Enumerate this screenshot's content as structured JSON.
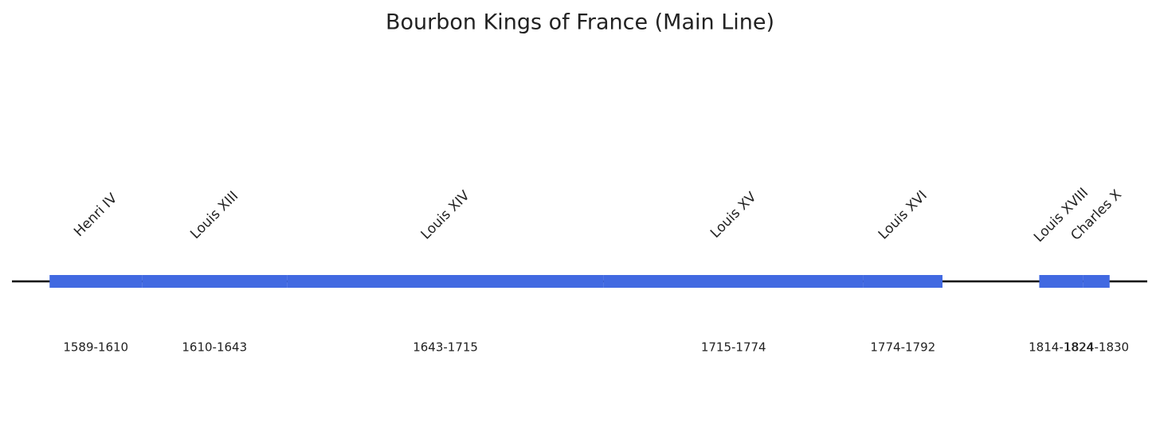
{
  "chart_data": {
    "type": "timeline",
    "title": "Bourbon Kings of France (Main Line)",
    "categories": [
      "Henri IV",
      "Louis XIII",
      "Louis XIV",
      "Louis XV",
      "Louis XVI",
      "Louis XVIII",
      "Charles X"
    ],
    "start": [
      1589,
      1610,
      1643,
      1715,
      1774,
      1814,
      1824
    ],
    "end": [
      1610,
      1643,
      1715,
      1774,
      1792,
      1824,
      1830
    ],
    "value_labels": [
      "1589-1610",
      "1610-1643",
      "1643-1715",
      "1715-1774",
      "1774-1792",
      "1814-1824",
      "1824-1830"
    ],
    "color": "#4169e1"
  }
}
